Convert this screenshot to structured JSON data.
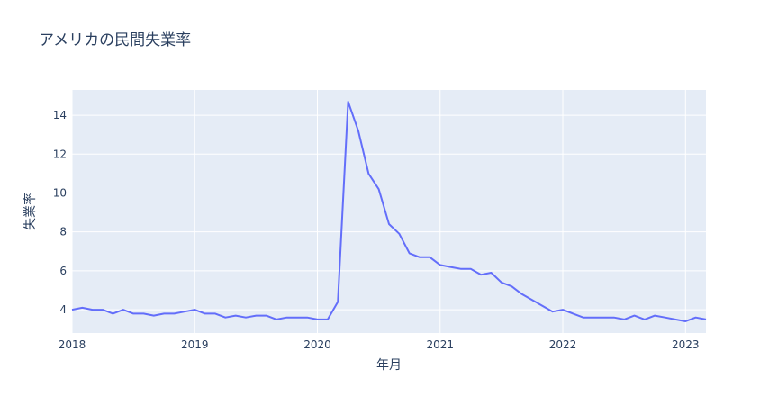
{
  "chart_data": {
    "type": "line",
    "title": "アメリカの民間失業率",
    "xlabel": "年月",
    "ylabel": "失業率",
    "x_tick_labels": [
      "2018",
      "2019",
      "2020",
      "2021",
      "2022",
      "2023"
    ],
    "y_tick_labels": [
      "4",
      "6",
      "8",
      "10",
      "12",
      "14"
    ],
    "y_ticks": [
      4,
      6,
      8,
      10,
      12,
      14
    ],
    "xlim": [
      "2018-01",
      "2023-03"
    ],
    "ylim": [
      2.8,
      15.3
    ],
    "grid": true,
    "legend": "none",
    "colors": {
      "line": "#636efa",
      "plot_bg": "#e5ecf6",
      "grid": "#ffffff",
      "text": "#2a3f5f"
    },
    "series": [
      {
        "x": [
          "2018-01",
          "2018-02",
          "2018-03",
          "2018-04",
          "2018-05",
          "2018-06",
          "2018-07",
          "2018-08",
          "2018-09",
          "2018-10",
          "2018-11",
          "2018-12",
          "2019-01",
          "2019-02",
          "2019-03",
          "2019-04",
          "2019-05",
          "2019-06",
          "2019-07",
          "2019-08",
          "2019-09",
          "2019-10",
          "2019-11",
          "2019-12",
          "2020-01",
          "2020-02",
          "2020-03",
          "2020-04",
          "2020-05",
          "2020-06",
          "2020-07",
          "2020-08",
          "2020-09",
          "2020-10",
          "2020-11",
          "2020-12",
          "2021-01",
          "2021-02",
          "2021-03",
          "2021-04",
          "2021-05",
          "2021-06",
          "2021-07",
          "2021-08",
          "2021-09",
          "2021-10",
          "2021-11",
          "2021-12",
          "2022-01",
          "2022-02",
          "2022-03",
          "2022-04",
          "2022-05",
          "2022-06",
          "2022-07",
          "2022-08",
          "2022-09",
          "2022-10",
          "2022-11",
          "2022-12",
          "2023-01",
          "2023-02",
          "2023-03"
        ],
        "values": [
          4.0,
          4.1,
          4.0,
          4.0,
          3.8,
          4.0,
          3.8,
          3.8,
          3.7,
          3.8,
          3.8,
          3.9,
          4.0,
          3.8,
          3.8,
          3.6,
          3.7,
          3.6,
          3.7,
          3.7,
          3.5,
          3.6,
          3.6,
          3.6,
          3.5,
          3.5,
          4.4,
          14.7,
          13.2,
          11.0,
          10.2,
          8.4,
          7.9,
          6.9,
          6.7,
          6.7,
          6.3,
          6.2,
          6.1,
          6.1,
          5.8,
          5.9,
          5.4,
          5.2,
          4.8,
          4.5,
          4.2,
          3.9,
          4.0,
          3.8,
          3.6,
          3.6,
          3.6,
          3.6,
          3.5,
          3.7,
          3.5,
          3.7,
          3.6,
          3.5,
          3.4,
          3.6,
          3.5
        ]
      }
    ]
  }
}
